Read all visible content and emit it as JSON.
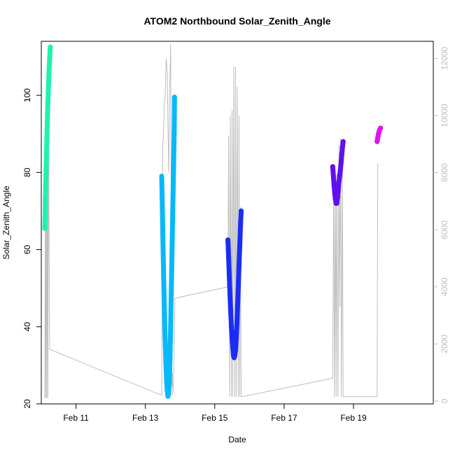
{
  "chart_data": {
    "type": "line",
    "title": "ATOM2 Northbound Solar_Zenith_Angle",
    "xlabel": "Date",
    "ylabel": "Solar_Zenith_Angle",
    "y2label": "",
    "xlim": [
      10.0,
      21.3
    ],
    "ylim": [
      20,
      114
    ],
    "y2lim": [
      -100,
      12600
    ],
    "x_ticks": [
      {
        "value": 11,
        "label": "Feb 11"
      },
      {
        "value": 13,
        "label": "Feb 13"
      },
      {
        "value": 15,
        "label": "Feb 15"
      },
      {
        "value": 17,
        "label": "Feb 17"
      },
      {
        "value": 19,
        "label": "Feb 19"
      }
    ],
    "y_ticks": [
      20,
      40,
      60,
      80,
      100
    ],
    "y2_ticks": [
      0,
      2000,
      4000,
      6000,
      8000,
      10000,
      12000
    ],
    "grid": false,
    "legend": "none",
    "colors": {
      "altitude": "#bfbfbf",
      "frame": "#000000",
      "secondary_axis": "#bfbfbf"
    },
    "series": [
      {
        "name": "",
        "role": "aircraft altitude (right axis)",
        "color": "#bfbfbf",
        "x": [
          10.1,
          10.12,
          10.13,
          10.15,
          10.16,
          10.18,
          10.19,
          10.21,
          10.24,
          10.27,
          13.47,
          13.5,
          13.52,
          13.55,
          13.57,
          13.6,
          13.63,
          13.67,
          13.7,
          13.73,
          13.76,
          13.78,
          13.79,
          13.81,
          13.82,
          13.83,
          13.84,
          13.85,
          15.38,
          15.4,
          15.43,
          15.45,
          15.48,
          15.5,
          15.52,
          15.55,
          15.58,
          15.6,
          15.62,
          15.65,
          15.68,
          15.7,
          15.72,
          15.74,
          15.76,
          15.79,
          18.4,
          18.43,
          18.45,
          18.48,
          18.5,
          18.52,
          18.55,
          18.58,
          18.6,
          18.63,
          18.65,
          18.68,
          18.7,
          18.71,
          19.68,
          19.7,
          19.71,
          19.73
        ],
        "y": [
          100,
          8000,
          100,
          8000,
          100,
          9000,
          100,
          10000,
          1800,
          1800,
          200,
          9000,
          9300,
          10500,
          10600,
          12000,
          11500,
          8000,
          11000,
          12500,
          500,
          1000,
          200,
          600,
          1300,
          1800,
          2500,
          3600,
          4000,
          9300,
          150,
          10000,
          150,
          10200,
          150,
          11700,
          150,
          11700,
          150,
          11000,
          150,
          10000,
          150,
          6800,
          150,
          150,
          800,
          8200,
          150,
          7400,
          150,
          8000,
          150,
          9000,
          3300,
          9200,
          150,
          8000,
          150,
          150,
          150,
          8300,
          8300,
          8300
        ]
      },
      {
        "name": "",
        "role": "solar zenith angle segment 1",
        "color": "#1ff2b0",
        "x": [
          10.1,
          10.11,
          10.12,
          10.13,
          10.14,
          10.15,
          10.16,
          10.17,
          10.18,
          10.19,
          10.2,
          10.21,
          10.22,
          10.23,
          10.24,
          10.25,
          10.26
        ],
        "y": [
          65.5,
          69,
          73,
          77,
          81,
          85,
          88.5,
          92,
          95,
          98,
          100.5,
          103,
          105.5,
          107.5,
          109.5,
          111,
          112.5
        ]
      },
      {
        "name": "",
        "role": "solar zenith angle segment 2",
        "color": "#08b8f8",
        "x": [
          13.47,
          13.49,
          13.51,
          13.53,
          13.55,
          13.57,
          13.59,
          13.61,
          13.63,
          13.65,
          13.67,
          13.69,
          13.71,
          13.73,
          13.75,
          13.77,
          13.79,
          13.81,
          13.83,
          13.84
        ],
        "y": [
          79,
          70,
          61,
          52,
          44,
          37,
          31,
          26.5,
          23.5,
          22,
          22.5,
          26,
          32,
          40,
          50,
          60,
          70,
          80,
          90,
          99.5
        ]
      },
      {
        "name": "",
        "role": "solar zenith angle segment 3",
        "color": "#1c2cf7",
        "x": [
          15.38,
          15.4,
          15.42,
          15.44,
          15.46,
          15.48,
          15.5,
          15.52,
          15.54,
          15.56,
          15.58,
          15.6,
          15.62,
          15.64,
          15.66,
          15.68,
          15.7,
          15.72,
          15.74,
          15.76
        ],
        "y": [
          62.5,
          58,
          53,
          48,
          44,
          40,
          37,
          34.5,
          32.5,
          32,
          32.5,
          34,
          37,
          41,
          46,
          51,
          56,
          61,
          66,
          70
        ]
      },
      {
        "name": "",
        "role": "solar zenith angle segment 4",
        "color": "#6010ee",
        "x": [
          18.4,
          18.42,
          18.44,
          18.46,
          18.48,
          18.5,
          18.52,
          18.54,
          18.56,
          18.58,
          18.6,
          18.62,
          18.64,
          18.66,
          18.68,
          18.7
        ],
        "y": [
          81.5,
          79,
          76.5,
          74.5,
          73,
          72,
          72,
          73.5,
          75.5,
          77.5,
          79,
          80.5,
          82.5,
          84.5,
          86.5,
          88
        ]
      },
      {
        "name": "",
        "role": "solar zenith angle segment 5",
        "color": "#e112f2",
        "x": [
          19.68,
          19.7,
          19.72,
          19.74,
          19.76,
          19.78
        ],
        "y": [
          88,
          89,
          90,
          90.7,
          91.2,
          91.5
        ]
      }
    ]
  }
}
